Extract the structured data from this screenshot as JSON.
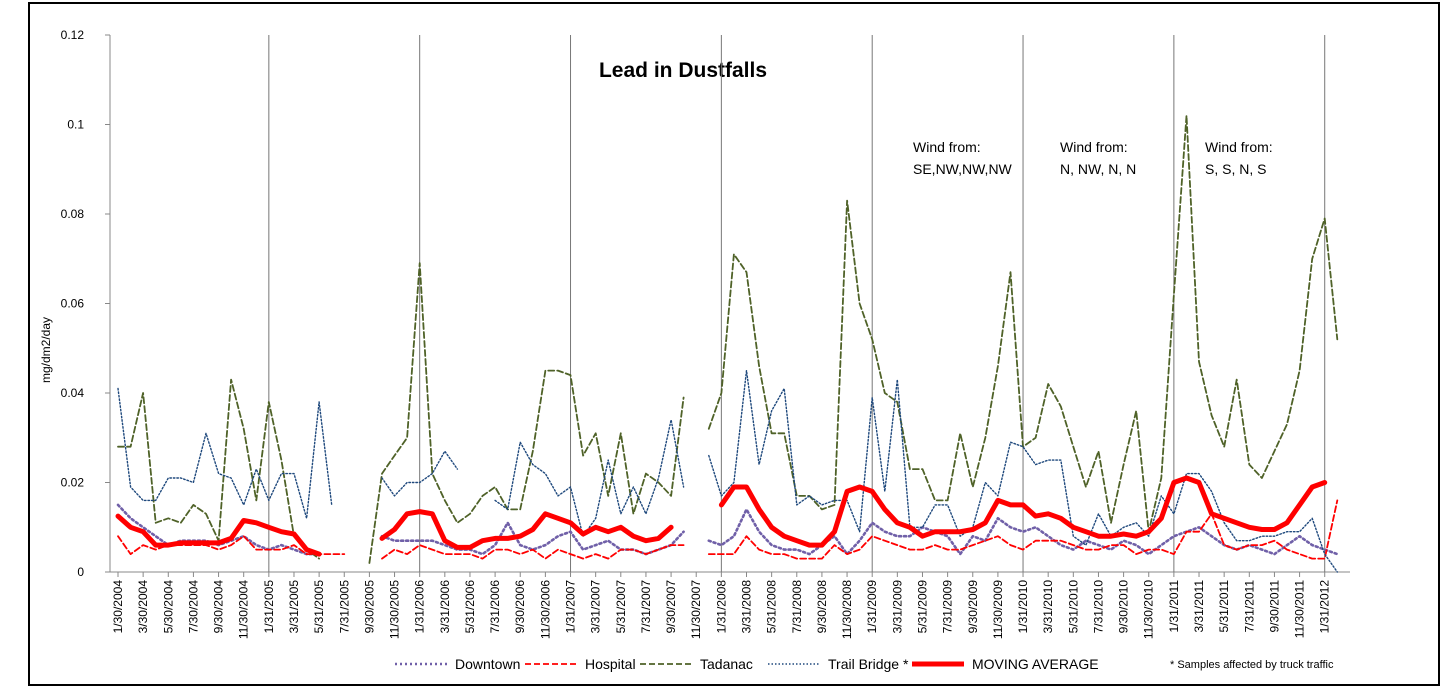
{
  "chart_data": {
    "type": "line",
    "title": "Lead in Dustfalls",
    "y_label": "mg/dm2/day",
    "ylim": [
      0,
      0.12
    ],
    "yticks": [
      0,
      0.02,
      0.04,
      0.06,
      0.08,
      0.1,
      0.12
    ],
    "categories": [
      "1/30/2004",
      null,
      "3/30/2004",
      null,
      "5/30/2004",
      null,
      "7/30/2004",
      null,
      "9/30/2004",
      null,
      "11/30/2004",
      null,
      "1/31/2005",
      null,
      "3/31/2005",
      null,
      "5/31/2005",
      null,
      "7/31/2005",
      null,
      "9/30/2005",
      null,
      "11/30/2005",
      null,
      "1/31/2006",
      null,
      "3/31/2006",
      null,
      "5/31/2006",
      null,
      "7/31/2006",
      null,
      "9/30/2006",
      null,
      "11/30/2006",
      null,
      "1/31/2007",
      null,
      "3/31/2007",
      null,
      "5/31/2007",
      null,
      "7/31/2007",
      null,
      "9/30/2007",
      null,
      "11/30/2007",
      null,
      "1/31/2008",
      null,
      "3/31/2008",
      null,
      "5/31/2008",
      null,
      "7/31/2008",
      null,
      "9/30/2008",
      null,
      "11/30/2008",
      null,
      "1/31/2009",
      null,
      "3/31/2009",
      null,
      "5/31/2009",
      null,
      "7/31/2009",
      null,
      "9/30/2009",
      null,
      "11/30/2009",
      null,
      "1/31/2010",
      null,
      "3/31/2010",
      null,
      "5/31/2010",
      null,
      "7/31/2010",
      null,
      "9/30/2010",
      null,
      "11/30/2010",
      null,
      "1/31/2011",
      null,
      "3/31/2011",
      null,
      "5/31/2011",
      null,
      "7/31/2011",
      null,
      "9/30/2011",
      null,
      "11/30/2011",
      null,
      "1/31/2012",
      null,
      null
    ],
    "series": [
      {
        "name": "Downtown",
        "color": "#7060a8",
        "line_style": "dotted",
        "values": [
          0.015,
          0.012,
          0.01,
          0.008,
          0.006,
          0.007,
          0.007,
          0.007,
          0.006,
          0.007,
          0.008,
          0.006,
          0.005,
          0.006,
          0.005,
          0.004,
          0.004,
          null,
          null,
          null,
          null,
          0.008,
          0.007,
          0.007,
          0.007,
          0.007,
          0.006,
          0.005,
          0.005,
          0.004,
          0.006,
          0.011,
          0.006,
          0.005,
          0.006,
          0.008,
          0.009,
          0.005,
          0.006,
          0.007,
          0.005,
          0.005,
          0.004,
          0.005,
          0.006,
          0.009,
          null,
          0.007,
          0.006,
          0.008,
          0.014,
          0.009,
          0.006,
          0.005,
          0.005,
          0.004,
          0.006,
          0.008,
          0.004,
          0.007,
          0.011,
          0.009,
          0.008,
          0.008,
          0.01,
          0.009,
          0.008,
          0.004,
          0.008,
          0.007,
          0.012,
          0.01,
          0.009,
          0.01,
          0.008,
          0.006,
          0.005,
          0.007,
          0.006,
          0.005,
          0.007,
          0.006,
          0.004,
          0.006,
          0.008,
          0.009,
          0.01,
          0.008,
          0.006,
          0.005,
          0.006,
          0.005,
          0.004,
          0.006,
          0.008,
          0.006,
          0.005,
          0.004,
          null
        ]
      },
      {
        "name": "Hospital",
        "color": "#ff0000",
        "line_style": "dashed",
        "values": [
          0.008,
          0.004,
          0.006,
          0.005,
          0.006,
          0.006,
          0.006,
          0.006,
          0.005,
          0.006,
          0.008,
          0.005,
          0.005,
          0.005,
          0.006,
          0.004,
          0.004,
          0.004,
          0.004,
          null,
          null,
          0.003,
          0.005,
          0.004,
          0.006,
          0.005,
          0.004,
          0.004,
          0.004,
          0.003,
          0.005,
          0.005,
          0.004,
          0.005,
          0.003,
          0.005,
          0.004,
          0.003,
          0.004,
          0.003,
          0.005,
          0.005,
          0.004,
          0.005,
          0.006,
          0.006,
          null,
          0.004,
          0.004,
          0.004,
          0.008,
          0.005,
          0.004,
          0.004,
          0.003,
          0.003,
          0.003,
          0.006,
          0.004,
          0.005,
          0.008,
          0.007,
          0.006,
          0.005,
          0.005,
          0.006,
          0.005,
          0.005,
          0.006,
          0.007,
          0.008,
          0.006,
          0.005,
          0.007,
          0.007,
          0.007,
          0.006,
          0.005,
          0.005,
          0.006,
          0.006,
          0.004,
          0.005,
          0.005,
          0.004,
          0.009,
          0.009,
          0.013,
          0.006,
          0.005,
          0.006,
          0.006,
          0.007,
          0.005,
          0.004,
          0.003,
          0.003,
          0.016,
          null
        ]
      },
      {
        "name": "Tadanac",
        "color": "#4f6228",
        "line_style": "dashed",
        "values": [
          0.028,
          0.028,
          0.04,
          0.011,
          0.012,
          0.011,
          0.015,
          0.013,
          0.007,
          0.043,
          0.032,
          0.016,
          0.038,
          0.025,
          0.008,
          0.005,
          0.003,
          null,
          null,
          null,
          0.002,
          0.022,
          0.026,
          0.03,
          0.069,
          0.022,
          0.016,
          0.011,
          0.013,
          0.017,
          0.019,
          0.014,
          0.014,
          0.027,
          0.045,
          0.045,
          0.044,
          0.026,
          0.031,
          0.017,
          0.031,
          0.013,
          0.022,
          0.02,
          0.017,
          0.039,
          null,
          0.032,
          0.04,
          0.071,
          0.067,
          0.046,
          0.031,
          0.031,
          0.017,
          0.017,
          0.014,
          0.015,
          0.083,
          0.06,
          0.052,
          0.04,
          0.038,
          0.023,
          0.023,
          0.016,
          0.016,
          0.031,
          0.019,
          0.03,
          0.046,
          0.067,
          0.028,
          0.03,
          0.042,
          0.037,
          0.028,
          0.019,
          0.027,
          0.011,
          0.024,
          0.036,
          0.009,
          0.021,
          0.062,
          0.102,
          0.047,
          0.035,
          0.028,
          0.043,
          0.024,
          0.021,
          0.027,
          0.033,
          0.045,
          0.07,
          0.079,
          0.052,
          null
        ]
      },
      {
        "name": "Trail Bridge *",
        "color": "#1f497d",
        "line_style": "fine-dotted",
        "values": [
          0.041,
          0.019,
          0.016,
          0.016,
          0.021,
          0.021,
          0.02,
          0.031,
          0.022,
          0.021,
          0.015,
          0.023,
          0.016,
          0.022,
          0.022,
          0.012,
          0.038,
          0.015,
          null,
          null,
          null,
          0.021,
          0.017,
          0.02,
          0.02,
          0.022,
          0.027,
          0.023,
          null,
          null,
          0.016,
          0.014,
          0.029,
          0.024,
          0.022,
          0.017,
          0.019,
          0.008,
          0.012,
          0.025,
          0.013,
          0.019,
          0.013,
          0.021,
          0.034,
          0.019,
          null,
          0.026,
          0.017,
          0.02,
          0.045,
          0.024,
          0.036,
          0.041,
          0.015,
          0.017,
          0.015,
          0.016,
          0.016,
          0.009,
          0.039,
          0.018,
          0.043,
          0.01,
          0.01,
          0.015,
          0.015,
          0.008,
          0.01,
          0.02,
          0.017,
          0.029,
          0.028,
          0.024,
          0.025,
          0.025,
          0.008,
          0.006,
          0.013,
          0.008,
          0.01,
          0.011,
          0.008,
          0.017,
          0.013,
          0.022,
          0.022,
          0.018,
          0.011,
          0.007,
          0.007,
          0.008,
          0.008,
          0.009,
          0.009,
          0.012,
          0.004,
          0.0,
          null
        ]
      },
      {
        "name": "MOVING AVERAGE",
        "color": "#ff0000",
        "line_style": "thick",
        "values": [
          0.0125,
          0.01,
          0.009,
          0.006,
          0.006,
          0.0065,
          0.0065,
          0.0065,
          0.0065,
          0.0075,
          0.0115,
          0.011,
          0.01,
          0.009,
          0.0085,
          0.005,
          0.004,
          null,
          null,
          null,
          null,
          0.0075,
          0.0095,
          0.013,
          0.0135,
          0.013,
          0.007,
          0.0055,
          0.0055,
          0.007,
          0.0075,
          0.0075,
          0.008,
          0.0095,
          0.013,
          0.012,
          0.011,
          0.0085,
          0.01,
          0.009,
          0.01,
          0.008,
          0.007,
          0.0075,
          0.01,
          null,
          null,
          null,
          0.015,
          0.019,
          0.019,
          0.014,
          0.01,
          0.008,
          0.007,
          0.006,
          0.006,
          0.009,
          0.018,
          0.019,
          0.018,
          0.014,
          0.011,
          0.01,
          0.008,
          0.009,
          0.009,
          0.009,
          0.0095,
          0.011,
          0.016,
          0.015,
          0.015,
          0.0125,
          0.013,
          0.012,
          0.01,
          0.009,
          0.008,
          0.008,
          0.0085,
          0.008,
          0.009,
          0.012,
          0.02,
          0.021,
          0.02,
          0.013,
          0.012,
          0.011,
          0.01,
          0.0095,
          0.0095,
          0.011,
          0.015,
          0.019,
          0.02,
          null,
          null
        ]
      }
    ],
    "annotations": [
      [
        "Wind from:",
        "SE,NW,NW,NW"
      ],
      [
        "Wind from:",
        "N, NW, N, N"
      ],
      [
        "Wind from:",
        "S,  S,   N,  S"
      ]
    ],
    "footnote": "* Samples affected by truck traffic",
    "legend": "bottom"
  }
}
